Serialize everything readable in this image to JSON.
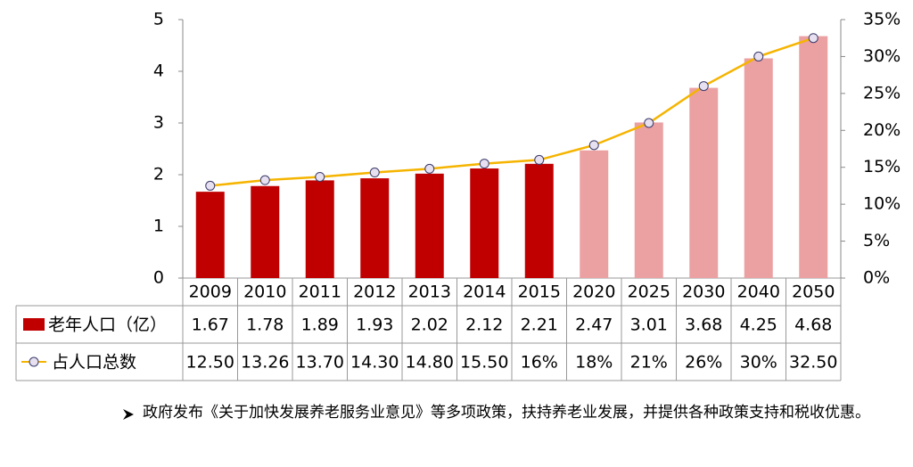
{
  "chart_data": {
    "type": "bar-line-table",
    "categories": [
      "2009",
      "2010",
      "2011",
      "2012",
      "2013",
      "2014",
      "2015",
      "2020",
      "2025",
      "2030",
      "2040",
      "2050"
    ],
    "series": [
      {
        "name": "老年人口（亿）",
        "type": "bar",
        "axis": "y",
        "colors": [
          "#c00000",
          "#c00000",
          "#c00000",
          "#c00000",
          "#c00000",
          "#c00000",
          "#c00000",
          "#eba0a2",
          "#eba0a2",
          "#eba0a2",
          "#eba0a2",
          "#eba0a2"
        ],
        "values": [
          1.67,
          1.78,
          1.89,
          1.93,
          2.02,
          2.12,
          2.21,
          2.47,
          3.01,
          3.68,
          4.25,
          4.68
        ]
      },
      {
        "name": "占人口总数",
        "type": "line",
        "axis": "y2",
        "color": "#f5b400",
        "marker_fill": "#e6e0f0",
        "marker_stroke": "#3a3a6a",
        "values": [
          12.5,
          13.26,
          13.7,
          14.3,
          14.8,
          15.5,
          16,
          18,
          21,
          26,
          30,
          32.5
        ],
        "value_labels": [
          "12.50",
          "13.26",
          "13.70",
          "14.30",
          "14.80",
          "15.50",
          "16%",
          "18%",
          "21%",
          "26%",
          "30%",
          "32.50"
        ]
      }
    ],
    "ylim": [
      0,
      5
    ],
    "yticks": [
      0,
      1,
      2,
      3,
      4,
      5
    ],
    "y2lim": [
      0,
      35
    ],
    "y2ticks": [
      {
        "value": 0,
        "label": "0%"
      },
      {
        "value": 5,
        "label": "5%"
      },
      {
        "value": 10,
        "label": "10%"
      },
      {
        "value": 15,
        "label": "15%"
      },
      {
        "value": 20,
        "label": "20%"
      },
      {
        "value": 25,
        "label": "25%"
      },
      {
        "value": 30,
        "label": "30%"
      },
      {
        "value": 35,
        "label": "35%"
      }
    ],
    "grid": false
  },
  "note": "政府发布《关于加快发展养老服务业意见》等多项政策，扶持养老业发展，并提供各种政策支持和税收优惠。"
}
